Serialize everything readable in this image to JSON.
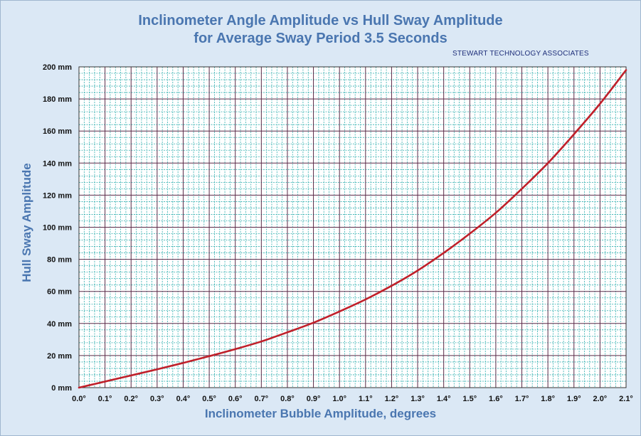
{
  "chart_data": {
    "type": "line",
    "title": "Inclinometer Angle Amplitude  vs Hull Sway Amplitude",
    "subtitle": "for Average Sway Period 3.5 Seconds",
    "credit": "STEWART TECHNOLOGY  ASSOCIATES",
    "xlabel": "Inclinometer Bubble Amplitude, degrees",
    "ylabel": "Hull Sway Amplitude",
    "xlim": [
      0,
      2.1
    ],
    "ylim": [
      0,
      200
    ],
    "x_ticks": [
      "0.0°",
      "0.1°",
      "0.2°",
      "0.3°",
      "0.4°",
      "0.5°",
      "0.6°",
      "0.7°",
      "0.8°",
      "0.9°",
      "1.0°",
      "1.1°",
      "1.2°",
      "1.3°",
      "1.4°",
      "1.5°",
      "1.6°",
      "1.7°",
      "1.8°",
      "1.9°",
      "2.0°",
      "2.1°"
    ],
    "y_ticks": [
      "0 mm",
      "20 mm",
      "40 mm",
      "60 mm",
      "80 mm",
      "100 mm",
      "120 mm",
      "140 mm",
      "160 mm",
      "180 mm",
      "200 mm"
    ],
    "grid": true,
    "colors": {
      "line": "#c0202a",
      "minor_grid": "#33b0b0",
      "major_grid": "#5a2a48",
      "plot_bg": "#ffffff"
    },
    "series": [
      {
        "x": [
          0.0,
          0.1,
          0.2,
          0.3,
          0.4,
          0.5,
          0.6,
          0.7,
          0.8,
          0.9,
          1.0,
          1.1,
          1.2,
          1.3,
          1.4,
          1.5,
          1.6,
          1.7,
          1.8,
          1.9,
          2.0,
          2.1
        ],
        "values": [
          0,
          3.8,
          7.6,
          11.4,
          15.4,
          19.6,
          24,
          28.8,
          34.5,
          40.5,
          47.5,
          55,
          63.5,
          73,
          84,
          96,
          109,
          124,
          140,
          158,
          177,
          198
        ]
      }
    ]
  }
}
